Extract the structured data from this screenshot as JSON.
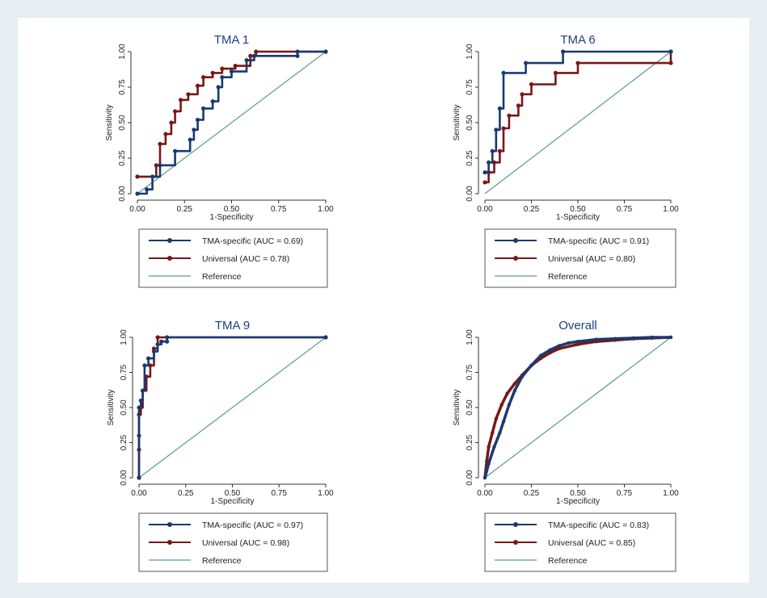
{
  "colors": {
    "tma_specific": "#1a3a6e",
    "universal": "#7a1616",
    "reference": "#5a9a94"
  },
  "chart_data": [
    {
      "type": "line",
      "title": "TMA 1",
      "xlabel": "1-Specificity",
      "ylabel": "Sensitivity",
      "xlim": [
        0,
        1
      ],
      "ylim": [
        0,
        1
      ],
      "xticks": [
        "0.00",
        "0.25",
        "0.50",
        "0.75",
        "1.00"
      ],
      "yticks": [
        "0.00",
        "0.25",
        "0.50",
        "0.75",
        "1.00"
      ],
      "series": [
        {
          "name": "TMA-specific (AUC = 0.69)",
          "style": "step",
          "x": [
            0,
            0.05,
            0.08,
            0.12,
            0.2,
            0.28,
            0.3,
            0.32,
            0.35,
            0.4,
            0.43,
            0.45,
            0.5,
            0.58,
            0.62,
            0.85,
            0.85,
            1
          ],
          "y": [
            0,
            0.03,
            0.12,
            0.2,
            0.3,
            0.38,
            0.45,
            0.52,
            0.6,
            0.65,
            0.75,
            0.82,
            0.86,
            0.94,
            0.97,
            0.97,
            1,
            1
          ]
        },
        {
          "name": "Universal (AUC = 0.78)",
          "style": "step",
          "x": [
            0,
            0.1,
            0.12,
            0.15,
            0.18,
            0.2,
            0.23,
            0.27,
            0.32,
            0.35,
            0.4,
            0.45,
            0.52,
            0.6,
            0.63,
            1
          ],
          "y": [
            0.12,
            0.2,
            0.35,
            0.42,
            0.5,
            0.58,
            0.66,
            0.7,
            0.76,
            0.82,
            0.85,
            0.88,
            0.9,
            0.97,
            1,
            1
          ]
        },
        {
          "name": "Reference",
          "style": "line",
          "x": [
            0,
            1
          ],
          "y": [
            0,
            1
          ]
        }
      ]
    },
    {
      "type": "line",
      "title": "TMA 6",
      "xlabel": "1-Specificity",
      "ylabel": "Sensitivity",
      "xlim": [
        0,
        1
      ],
      "ylim": [
        0,
        1
      ],
      "xticks": [
        "0.00",
        "0.25",
        "0.50",
        "0.75",
        "1.00"
      ],
      "yticks": [
        "0.00",
        "0.25",
        "0.50",
        "0.75",
        "1.00"
      ],
      "series": [
        {
          "name": "TMA-specific (AUC = 0.91)",
          "style": "step",
          "x": [
            0,
            0.02,
            0.04,
            0.06,
            0.08,
            0.1,
            0.22,
            0.42,
            1
          ],
          "y": [
            0.15,
            0.22,
            0.3,
            0.45,
            0.6,
            0.85,
            0.92,
            1,
            1
          ]
        },
        {
          "name": "Universal (AUC = 0.80)",
          "style": "step",
          "x": [
            0,
            0.02,
            0.05,
            0.08,
            0.1,
            0.13,
            0.18,
            0.2,
            0.25,
            0.38,
            0.5,
            1,
            1
          ],
          "y": [
            0.08,
            0.15,
            0.22,
            0.3,
            0.46,
            0.55,
            0.62,
            0.7,
            0.77,
            0.85,
            0.92,
            0.92,
            1
          ]
        },
        {
          "name": "Reference",
          "style": "line",
          "x": [
            0,
            1
          ],
          "y": [
            0,
            1
          ]
        }
      ]
    },
    {
      "type": "line",
      "title": "TMA 9",
      "xlabel": "1-Specificity",
      "ylabel": "Sensitivity",
      "xlim": [
        0,
        1
      ],
      "ylim": [
        0,
        1
      ],
      "xticks": [
        "0.00",
        "0.25",
        "0.50",
        "0.75",
        "1.00"
      ],
      "yticks": [
        "0.00",
        "0.25",
        "0.50",
        "0.75",
        "1.00"
      ],
      "series": [
        {
          "name": "TMA-specific (AUC = 0.97)",
          "style": "step",
          "x": [
            0,
            0,
            0,
            0.01,
            0.02,
            0.03,
            0.05,
            0.08,
            0.1,
            0.12,
            0.15,
            0.15,
            1
          ],
          "y": [
            0,
            0.3,
            0.5,
            0.55,
            0.62,
            0.8,
            0.85,
            0.9,
            0.95,
            0.97,
            0.97,
            1,
            1
          ]
        },
        {
          "name": "Universal (AUC = 0.98)",
          "style": "step",
          "x": [
            0,
            0,
            0,
            0.01,
            0.02,
            0.04,
            0.06,
            0.08,
            0.1,
            1
          ],
          "y": [
            0,
            0.2,
            0.45,
            0.5,
            0.62,
            0.72,
            0.8,
            0.92,
            1,
            1
          ]
        },
        {
          "name": "Reference",
          "style": "line",
          "x": [
            0,
            1
          ],
          "y": [
            0,
            1
          ]
        }
      ]
    },
    {
      "type": "line",
      "title": "Overall",
      "xlabel": "1-Specificity",
      "ylabel": "Sensitivity",
      "xlim": [
        0,
        1
      ],
      "ylim": [
        0,
        1
      ],
      "xticks": [
        "0.00",
        "0.25",
        "0.50",
        "0.75",
        "1.00"
      ],
      "yticks": [
        "0.00",
        "0.25",
        "0.50",
        "0.75",
        "1.00"
      ],
      "series": [
        {
          "name": "TMA-specific (AUC = 0.83)",
          "style": "curve",
          "x": [
            0,
            0.02,
            0.05,
            0.08,
            0.1,
            0.13,
            0.16,
            0.2,
            0.25,
            0.3,
            0.35,
            0.4,
            0.45,
            0.5,
            0.6,
            0.7,
            0.8,
            0.9,
            1
          ],
          "y": [
            0,
            0.1,
            0.22,
            0.32,
            0.4,
            0.52,
            0.62,
            0.72,
            0.8,
            0.87,
            0.91,
            0.94,
            0.96,
            0.97,
            0.985,
            0.99,
            0.995,
            1,
            1
          ]
        },
        {
          "name": "Universal (AUC = 0.85)",
          "style": "curve",
          "x": [
            0,
            0.01,
            0.02,
            0.04,
            0.06,
            0.09,
            0.12,
            0.16,
            0.2,
            0.25,
            0.3,
            0.35,
            0.4,
            0.5,
            0.6,
            0.7,
            0.8,
            0.9,
            1
          ],
          "y": [
            0,
            0.12,
            0.22,
            0.32,
            0.42,
            0.52,
            0.6,
            0.67,
            0.73,
            0.8,
            0.85,
            0.89,
            0.92,
            0.95,
            0.97,
            0.98,
            0.99,
            0.995,
            1
          ]
        },
        {
          "name": "Reference",
          "style": "line",
          "x": [
            0,
            1
          ],
          "y": [
            0,
            1
          ]
        }
      ]
    }
  ]
}
